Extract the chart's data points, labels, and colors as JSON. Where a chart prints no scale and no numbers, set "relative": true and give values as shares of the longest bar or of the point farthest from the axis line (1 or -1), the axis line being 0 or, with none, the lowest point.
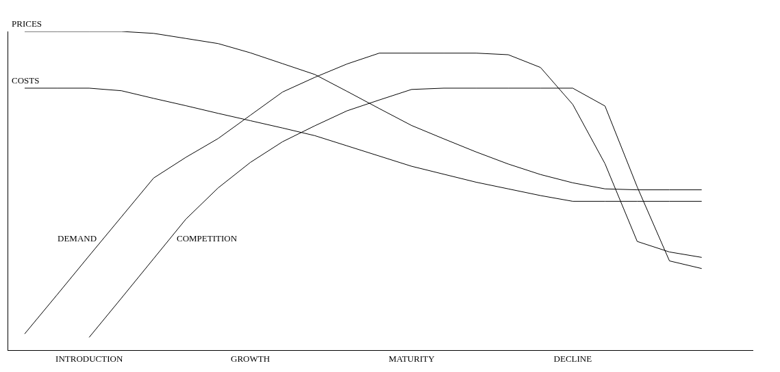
{
  "chart_data": {
    "type": "line",
    "relative": true,
    "categories": [
      null,
      null,
      "INTRODUCTION",
      null,
      null,
      null,
      null,
      "GROWTH",
      null,
      null,
      null,
      null,
      "MATURITY",
      null,
      null,
      null,
      null,
      "DECLINE",
      null,
      null,
      null,
      null,
      null
    ],
    "legend": false,
    "marker": "none",
    "line_style": "solid",
    "series": [
      {
        "name": "PRICES",
        "color": "#000000",
        "values": [
          1.0,
          1.0,
          1.0,
          1.0,
          0.994,
          0.978,
          0.962,
          0.933,
          0.899,
          0.865,
          0.812,
          0.758,
          0.705,
          0.663,
          0.622,
          0.584,
          0.551,
          0.525,
          0.506,
          0.503,
          0.503,
          0.503,
          null
        ]
      },
      {
        "name": "COSTS",
        "color": "#000000",
        "values": [
          0.822,
          0.822,
          0.822,
          0.814,
          0.79,
          0.767,
          0.743,
          0.72,
          0.697,
          0.673,
          0.641,
          0.609,
          0.577,
          0.552,
          0.527,
          0.506,
          0.485,
          0.467,
          0.467,
          0.467,
          0.467,
          0.467,
          null
        ]
      },
      {
        "name": "DEMAND",
        "color": "#000000",
        "values": [
          0.051,
          0.173,
          0.296,
          0.418,
          0.54,
          0.605,
          0.664,
          0.737,
          0.81,
          0.856,
          0.898,
          0.932,
          0.932,
          0.932,
          0.932,
          0.927,
          0.887,
          0.771,
          0.585,
          0.341,
          0.308,
          0.291,
          null
        ]
      },
      {
        "name": "COMPETITION",
        "color": "#000000",
        "values": [
          null,
          null,
          0.04,
          0.163,
          0.287,
          0.411,
          0.509,
          0.589,
          0.654,
          0.704,
          0.751,
          0.785,
          0.818,
          0.822,
          0.822,
          0.822,
          0.822,
          0.822,
          0.766,
          0.512,
          0.28,
          0.256,
          null
        ]
      }
    ]
  }
}
